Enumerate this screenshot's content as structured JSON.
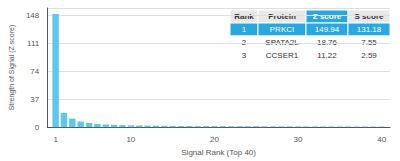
{
  "chart_data": {
    "type": "bar",
    "x": [
      1,
      2,
      3,
      4,
      5,
      6,
      7,
      8,
      9,
      10,
      11,
      12,
      13,
      14,
      15,
      16,
      17,
      18,
      19,
      20,
      21,
      22,
      23,
      24,
      25,
      26,
      27,
      28,
      29,
      30,
      31,
      32,
      33,
      34,
      35,
      36,
      37,
      38,
      39,
      40
    ],
    "values": [
      149.94,
      18.76,
      11.22,
      7.5,
      5.5,
      4.2,
      3.5,
      3.0,
      2.6,
      2.3,
      2.1,
      1.9,
      1.8,
      1.7,
      1.6,
      1.5,
      1.4,
      1.35,
      1.3,
      1.25,
      1.2,
      1.15,
      1.1,
      1.07,
      1.04,
      1.01,
      0.98,
      0.96,
      0.94,
      0.92,
      0.9,
      0.88,
      0.86,
      0.84,
      0.82,
      0.8,
      0.79,
      0.78,
      0.77,
      0.76
    ],
    "color": "#5bc8f0",
    "xlabel": "Signal Rank (Top 40)",
    "ylabel": "Strength of Signal (Z score)",
    "xlim": [
      0,
      41
    ],
    "xticks": [
      1,
      10,
      20,
      30,
      40
    ],
    "ylim": [
      0,
      158
    ],
    "yticks": [
      0,
      37,
      74,
      111,
      148
    ],
    "grid": true,
    "table": {
      "header": [
        "Rank",
        "Protein",
        "Z score",
        "S score"
      ],
      "rows": [
        [
          "1",
          "PRKCI",
          "149.94",
          "131.18"
        ],
        [
          "2",
          "SPATA2L",
          "18.76",
          "7.55"
        ],
        [
          "3",
          "CCSER1",
          "11.22",
          "2.59"
        ]
      ]
    }
  }
}
